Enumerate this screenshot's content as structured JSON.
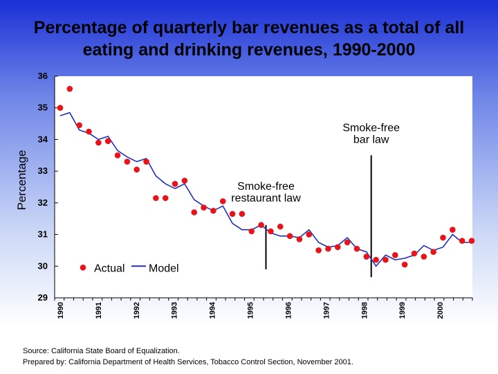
{
  "chart_data": {
    "type": "scatter",
    "title": "Percentage of quarterly bar revenues as a total of all eating and drinking revenues, 1990-2000",
    "title_lines": [
      "Percentage of quarterly bar revenues as a total of all",
      "eating and drinking revenues, 1990-2000"
    ],
    "xlabel": "",
    "ylabel": "Percentage",
    "ylim": [
      29,
      36
    ],
    "yticks": [
      "29",
      "30",
      "31",
      "32",
      "33",
      "34",
      "35",
      "36"
    ],
    "xlim": [
      0,
      44
    ],
    "xtick_labels": [
      "1990",
      "1991",
      "1992",
      "1993",
      "1994",
      "1995",
      "1996",
      "1997",
      "1998",
      "1999",
      "2000"
    ],
    "series": [
      {
        "name": "Actual",
        "color": "#e8141c",
        "marker": "circle",
        "values": [
          35.0,
          35.6,
          34.45,
          34.25,
          33.9,
          33.95,
          33.5,
          33.3,
          33.05,
          33.3,
          32.15,
          32.15,
          32.6,
          32.7,
          31.7,
          31.85,
          31.75,
          32.05,
          31.65,
          31.65,
          31.1,
          31.3,
          31.1,
          31.25,
          30.95,
          30.85,
          31.0,
          30.5,
          30.55,
          30.6,
          30.75,
          30.55,
          30.3,
          30.2,
          30.2,
          30.35,
          30.05,
          30.4,
          30.3,
          30.45,
          30.9,
          31.15,
          30.8,
          30.8
        ]
      },
      {
        "name": "Model",
        "color": "#1f2fb8",
        "marker": "line",
        "values": [
          34.75,
          34.85,
          34.3,
          34.2,
          34.0,
          34.1,
          33.65,
          33.45,
          33.3,
          33.4,
          32.85,
          32.6,
          32.45,
          32.6,
          32.1,
          31.9,
          31.75,
          31.9,
          31.35,
          31.15,
          31.15,
          31.3,
          31.05,
          30.95,
          30.95,
          30.9,
          31.15,
          30.75,
          30.6,
          30.65,
          30.9,
          30.55,
          30.45,
          30.0,
          30.35,
          30.2,
          30.25,
          30.35,
          30.65,
          30.5,
          30.6,
          31.0,
          30.75,
          30.75
        ]
      }
    ],
    "annotations": [
      {
        "label_lines": [
          "Smoke-free",
          "restaurant law"
        ],
        "x": 21.5,
        "line_from": 29.9,
        "line_to": 31.3
      },
      {
        "label_lines": [
          "Smoke-free",
          "bar law"
        ],
        "x": 32.5,
        "line_from": 29.65,
        "line_to": 33.5
      }
    ],
    "legend": {
      "position": "bottom-left",
      "entries": [
        "Actual",
        "Model"
      ]
    },
    "grid": false
  },
  "footer": {
    "source": "Source:  California State Board of Equalization.",
    "prepared": "Prepared by: California Department of Health Services, Tobacco Control Section, November 2001."
  }
}
